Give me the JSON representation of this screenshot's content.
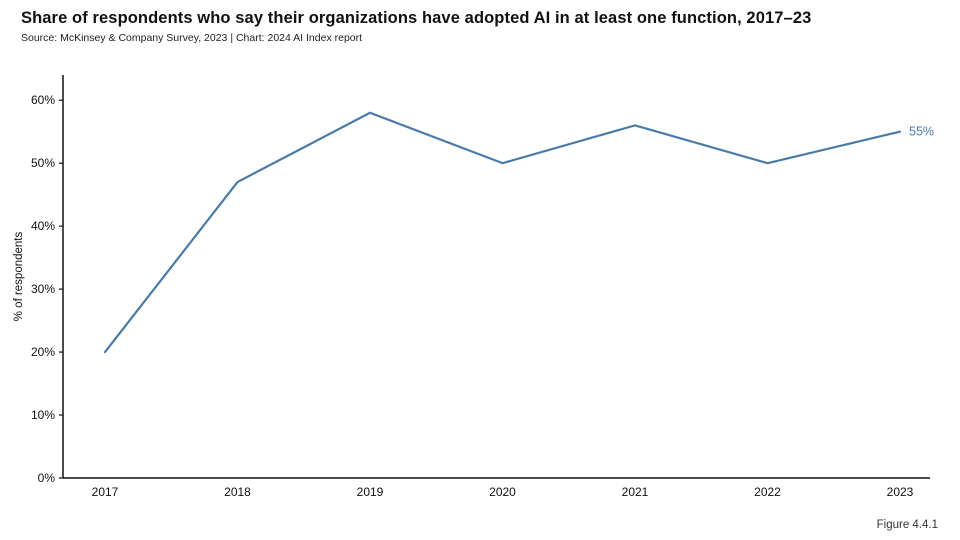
{
  "header": {
    "title": "Share of respondents who say their organizations have adopted AI in at least one function, 2017–23",
    "source": "Source: McKinsey & Company Survey, 2023 | Chart: 2024 AI Index report"
  },
  "footer": {
    "figure_label": "Figure 4.4.1"
  },
  "colors": {
    "line": "#4a7ba7",
    "axis": "#111111",
    "tick_text": "#111111"
  },
  "chart_data": {
    "type": "line",
    "title": "Share of respondents who say their organizations have adopted AI in at least one function, 2017–23",
    "x": [
      "2017",
      "2018",
      "2019",
      "2020",
      "2021",
      "2022",
      "2023"
    ],
    "values": [
      20,
      47,
      58,
      50,
      56,
      50,
      55
    ],
    "xlabel": "",
    "ylabel": "% of respondents",
    "ylim": [
      0,
      64
    ],
    "yticks": [
      0,
      10,
      20,
      30,
      40,
      50,
      60
    ],
    "ytick_suffix": "%",
    "grid": false,
    "legend": "none",
    "end_label": "55%",
    "line_color": "#4a7ba7"
  }
}
